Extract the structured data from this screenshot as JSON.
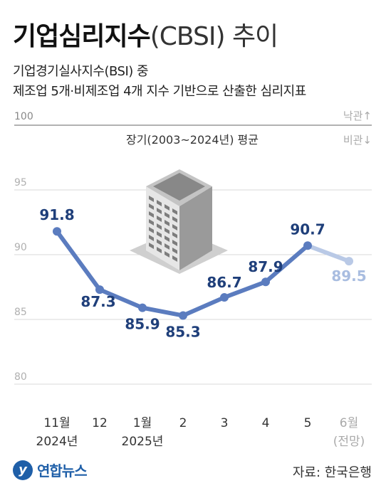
{
  "header": {
    "title_bold": "기업심리지수",
    "title_light": "(CBSI) 추이",
    "subtitle_line1": "기업경기실사지수(BSI) 중",
    "subtitle_line2": "제조업 5개·비제조업 4개 지수 기반으로 산출한 심리지표"
  },
  "reference": {
    "value_label": "100",
    "caption": "장기(2003~2024년) 평균",
    "above": "낙관↑",
    "below": "비관↓"
  },
  "footer": {
    "logo_text": "연합뉴스",
    "source": "자료: 한국은행"
  },
  "colors": {
    "line": "#5b7cbf",
    "forecast": "#b9c9e6",
    "grid": "#d9d9d9",
    "axis_text": "#b0b0b0"
  },
  "chart_data": {
    "type": "line",
    "categories": [
      "11월\n2024년",
      "12",
      "1월\n2025년",
      "2",
      "3",
      "4",
      "5",
      "6월\n(전망)"
    ],
    "values": [
      91.8,
      87.3,
      85.9,
      85.3,
      86.7,
      87.9,
      90.7,
      89.5
    ],
    "value_labels": [
      "91.8",
      "87.3",
      "85.9",
      "85.3",
      "86.7",
      "87.9",
      "90.7",
      "89.5"
    ],
    "forecast_from_index": 7,
    "yticks": [
      80,
      85,
      90,
      95
    ],
    "ytick_labels": [
      "80",
      "85",
      "90",
      "95"
    ],
    "ylim": [
      78,
      100
    ],
    "reference_line": 100,
    "grid": true
  }
}
